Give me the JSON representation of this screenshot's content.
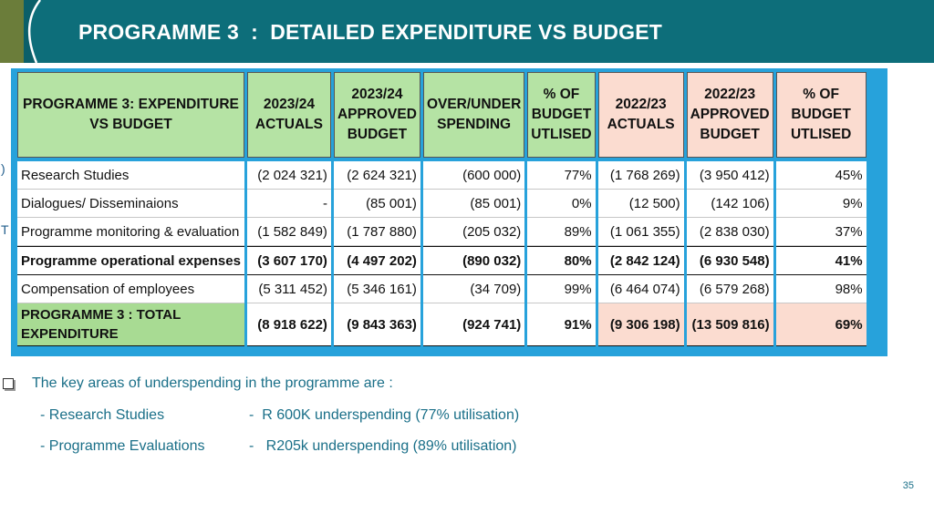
{
  "slide": {
    "title": "PROGRAMME 3  :  DETAILED EXPENDITURE VS BUDGET",
    "page_number": "35",
    "stray_marks": [
      ")",
      "T"
    ]
  },
  "colors": {
    "header_bg": "#0d6e7a",
    "header_accent": "#6b7d3a",
    "table_frame": "#27a2db",
    "header_green": "#b5e3a4",
    "header_pink": "#fbdcd0",
    "total_green": "#a8db93",
    "body_text": "#1a6f88"
  },
  "table": {
    "headers": [
      {
        "text": "PROGRAMME 3: EXPENDITURE VS BUDGET",
        "tone": "green"
      },
      {
        "text": "2023/24 ACTUALS",
        "tone": "green"
      },
      {
        "text": "2023/24 APPROVED BUDGET",
        "tone": "green"
      },
      {
        "text": "OVER/UNDER SPENDING",
        "tone": "green"
      },
      {
        "text": "% OF BUDGET UTLISED",
        "tone": "green"
      },
      {
        "text": "2022/23 ACTUALS",
        "tone": "pink"
      },
      {
        "text": "2022/23 APPROVED BUDGET",
        "tone": "pink"
      },
      {
        "text": "% OF BUDGET UTLISED",
        "tone": "pink"
      }
    ],
    "rows": [
      {
        "label": "Research Studies",
        "actuals_2324": "(2 024 321)",
        "budget_2324": "(2 624 321)",
        "over_under": "(600 000)",
        "pct_2324": "77%",
        "actuals_2223": "(1 768 269)",
        "budget_2223": "(3 950 412)",
        "pct_2223": "45%"
      },
      {
        "label": "Dialogues/ Disseminaions",
        "actuals_2324": "-",
        "budget_2324": "(85 001)",
        "over_under": "(85 001)",
        "pct_2324": "0%",
        "actuals_2223": "(12 500)",
        "budget_2223": "(142 106)",
        "pct_2223": "9%"
      },
      {
        "label": "Programme monitoring &  evaluation",
        "actuals_2324": "(1 582 849)",
        "budget_2324": "(1 787 880)",
        "over_under": "(205 032)",
        "pct_2324": "89%",
        "actuals_2223": "(1 061 355)",
        "budget_2223": "(2 838 030)",
        "pct_2223": "37%"
      },
      {
        "label": "Programme operational expenses",
        "actuals_2324": "(3 607 170)",
        "budget_2324": "(4 497 202)",
        "over_under": "(890 032)",
        "pct_2324": "80%",
        "actuals_2223": "(2 842 124)",
        "budget_2223": "(6 930 548)",
        "pct_2223": "41%"
      },
      {
        "label": "Compensation of employees",
        "actuals_2324": "(5 311 452)",
        "budget_2324": "(5 346 161)",
        "over_under": "(34 709)",
        "pct_2324": "99%",
        "actuals_2223": "(6 464 074)",
        "budget_2223": "(6 579 268)",
        "pct_2223": "98%"
      }
    ],
    "total": {
      "label_line1": "PROGRAMME 3 : TOTAL",
      "label_line2": "EXPENDITURE",
      "actuals_2324": "(8 918 622)",
      "budget_2324": "(9 843 363)",
      "over_under": "(924 741)",
      "pct_2324": "91%",
      "actuals_2223": "(9 306 198)",
      "budget_2223": "(13 509 816)",
      "pct_2223": "69%"
    }
  },
  "notes": {
    "intro": "The key areas of underspending in the programme are :",
    "items": [
      {
        "area": "- Research Studies",
        "detail": "-  R 600K underspending (77% utilisation)"
      },
      {
        "area": "- Programme Evaluations",
        "detail": "-   R205k underspending (89% utilisation)"
      }
    ]
  }
}
